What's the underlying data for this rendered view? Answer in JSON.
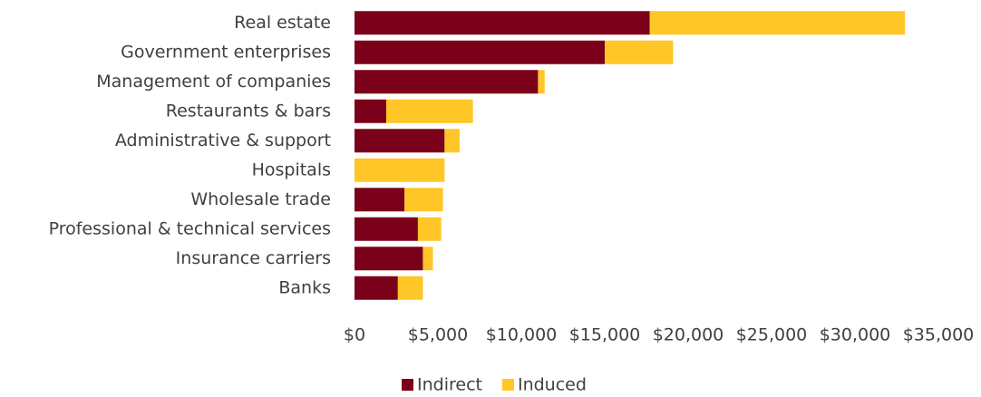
{
  "chart_data": {
    "type": "bar",
    "orientation": "horizontal",
    "stacked": true,
    "categories": [
      "Real estate",
      "Government enterprises",
      "Management of companies",
      "Restaurants & bars",
      "Administrative & support",
      "Hospitals",
      "Wholesale trade",
      "Professional & technical services",
      "Insurance carriers",
      "Banks"
    ],
    "series": [
      {
        "name": "Indirect",
        "color": "#7b0019",
        "values": [
          17700,
          15000,
          11000,
          1900,
          5400,
          0,
          3000,
          3800,
          4100,
          2600
        ]
      },
      {
        "name": "Induced",
        "color": "#ffc627",
        "values": [
          15300,
          4100,
          400,
          5200,
          900,
          5400,
          2300,
          1400,
          600,
          1500
        ]
      }
    ],
    "xlim": [
      0,
      35000
    ],
    "xticks": [
      {
        "value": 0,
        "label": "$0"
      },
      {
        "value": 5000,
        "label": "$5,000"
      },
      {
        "value": 10000,
        "label": "$10,000"
      },
      {
        "value": 15000,
        "label": "$15,000"
      },
      {
        "value": 20000,
        "label": "$20,000"
      },
      {
        "value": 25000,
        "label": "$25,000"
      },
      {
        "value": 30000,
        "label": "$30,000"
      },
      {
        "value": 35000,
        "label": "$35,000"
      }
    ],
    "grid": false,
    "legend": "bottom"
  }
}
